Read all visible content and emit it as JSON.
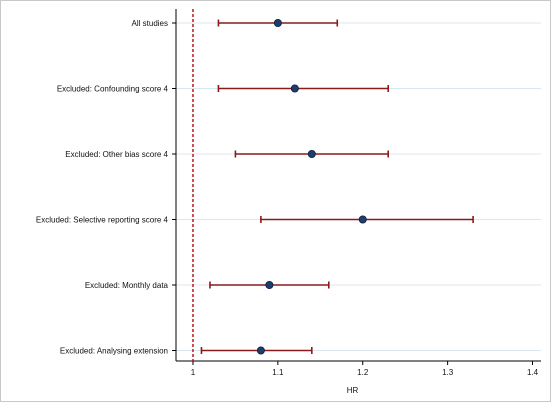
{
  "chart_data": {
    "type": "scatter",
    "subtype": "forest-plot",
    "title": "",
    "xlabel": "HR",
    "ylabel": "",
    "xlim": [
      0.98,
      1.41
    ],
    "xticks": [
      1,
      1.1,
      1.2,
      1.3,
      1.4
    ],
    "xtick_labels": [
      "1",
      "1.1",
      "1.2",
      "1.3",
      "1.4"
    ],
    "reference_line": {
      "x": 1,
      "style": "dashed",
      "color": "#c0161e"
    },
    "grid": {
      "horizontal": true,
      "vertical": false
    },
    "legend": "none",
    "colors": {
      "interval": "#8b1a1a",
      "point": "#1f3d6b",
      "grid": "#dbe7ee",
      "axis": "#000000"
    },
    "rows": [
      {
        "label": "All studies",
        "estimate": 1.1,
        "lower": 1.03,
        "upper": 1.17
      },
      {
        "label": "Excluded: Confounding score 4",
        "estimate": 1.12,
        "lower": 1.03,
        "upper": 1.23
      },
      {
        "label": "Excluded: Other bias score 4",
        "estimate": 1.14,
        "lower": 1.05,
        "upper": 1.23
      },
      {
        "label": "Excluded: Selective reporting score 4",
        "estimate": 1.2,
        "lower": 1.08,
        "upper": 1.33
      },
      {
        "label": "Excluded: Monthly data",
        "estimate": 1.09,
        "lower": 1.02,
        "upper": 1.16
      },
      {
        "label": "Excluded: Analysing extension",
        "estimate": 1.08,
        "lower": 1.01,
        "upper": 1.14
      }
    ]
  }
}
